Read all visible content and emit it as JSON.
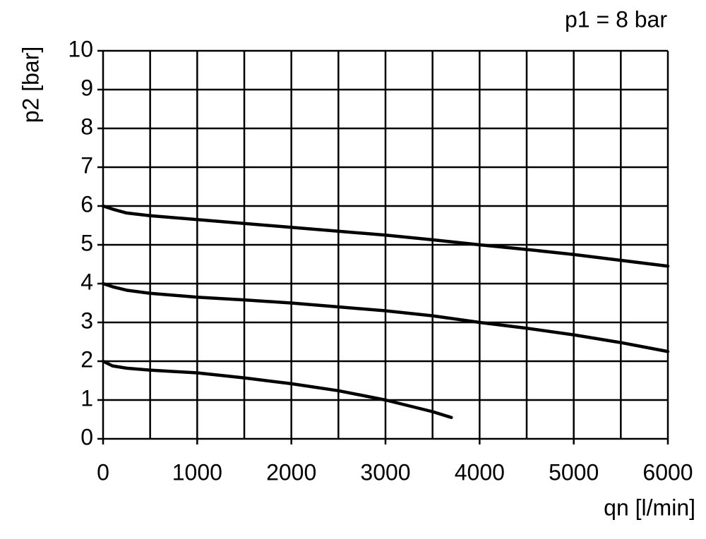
{
  "chart_data": {
    "type": "line",
    "annotation": "p1 = 8 bar",
    "xlabel": "qn [l/min]",
    "ylabel": "p2 [bar]",
    "xlim": [
      0,
      6000
    ],
    "ylim": [
      0,
      10
    ],
    "xticks": [
      0,
      1000,
      2000,
      3000,
      4000,
      5000,
      6000
    ],
    "xminorticks": [
      500,
      1500,
      2500,
      3500,
      4500,
      5500
    ],
    "yticks": [
      0,
      1,
      2,
      3,
      4,
      5,
      6,
      7,
      8,
      9,
      10
    ],
    "grid": true,
    "series": [
      {
        "color": "#000000",
        "x": [
          0,
          100,
          250,
          500,
          1000,
          1500,
          2000,
          2500,
          3000,
          3500,
          4000,
          4500,
          5000,
          5500,
          6000
        ],
        "values": [
          6.0,
          5.92,
          5.82,
          5.75,
          5.65,
          5.55,
          5.45,
          5.35,
          5.25,
          5.13,
          5.0,
          4.88,
          4.75,
          4.6,
          4.45
        ]
      },
      {
        "color": "#000000",
        "x": [
          0,
          100,
          250,
          500,
          1000,
          1500,
          2000,
          2500,
          3000,
          3500,
          4000,
          4500,
          5000,
          5500,
          6000
        ],
        "values": [
          4.0,
          3.92,
          3.83,
          3.75,
          3.65,
          3.58,
          3.5,
          3.4,
          3.3,
          3.17,
          3.0,
          2.85,
          2.68,
          2.48,
          2.25
        ]
      },
      {
        "color": "#000000",
        "x": [
          0,
          100,
          250,
          500,
          1000,
          1500,
          2000,
          2500,
          3000,
          3500,
          3700
        ],
        "values": [
          2.0,
          1.88,
          1.82,
          1.77,
          1.7,
          1.57,
          1.42,
          1.24,
          1.0,
          0.7,
          0.55
        ]
      }
    ]
  }
}
